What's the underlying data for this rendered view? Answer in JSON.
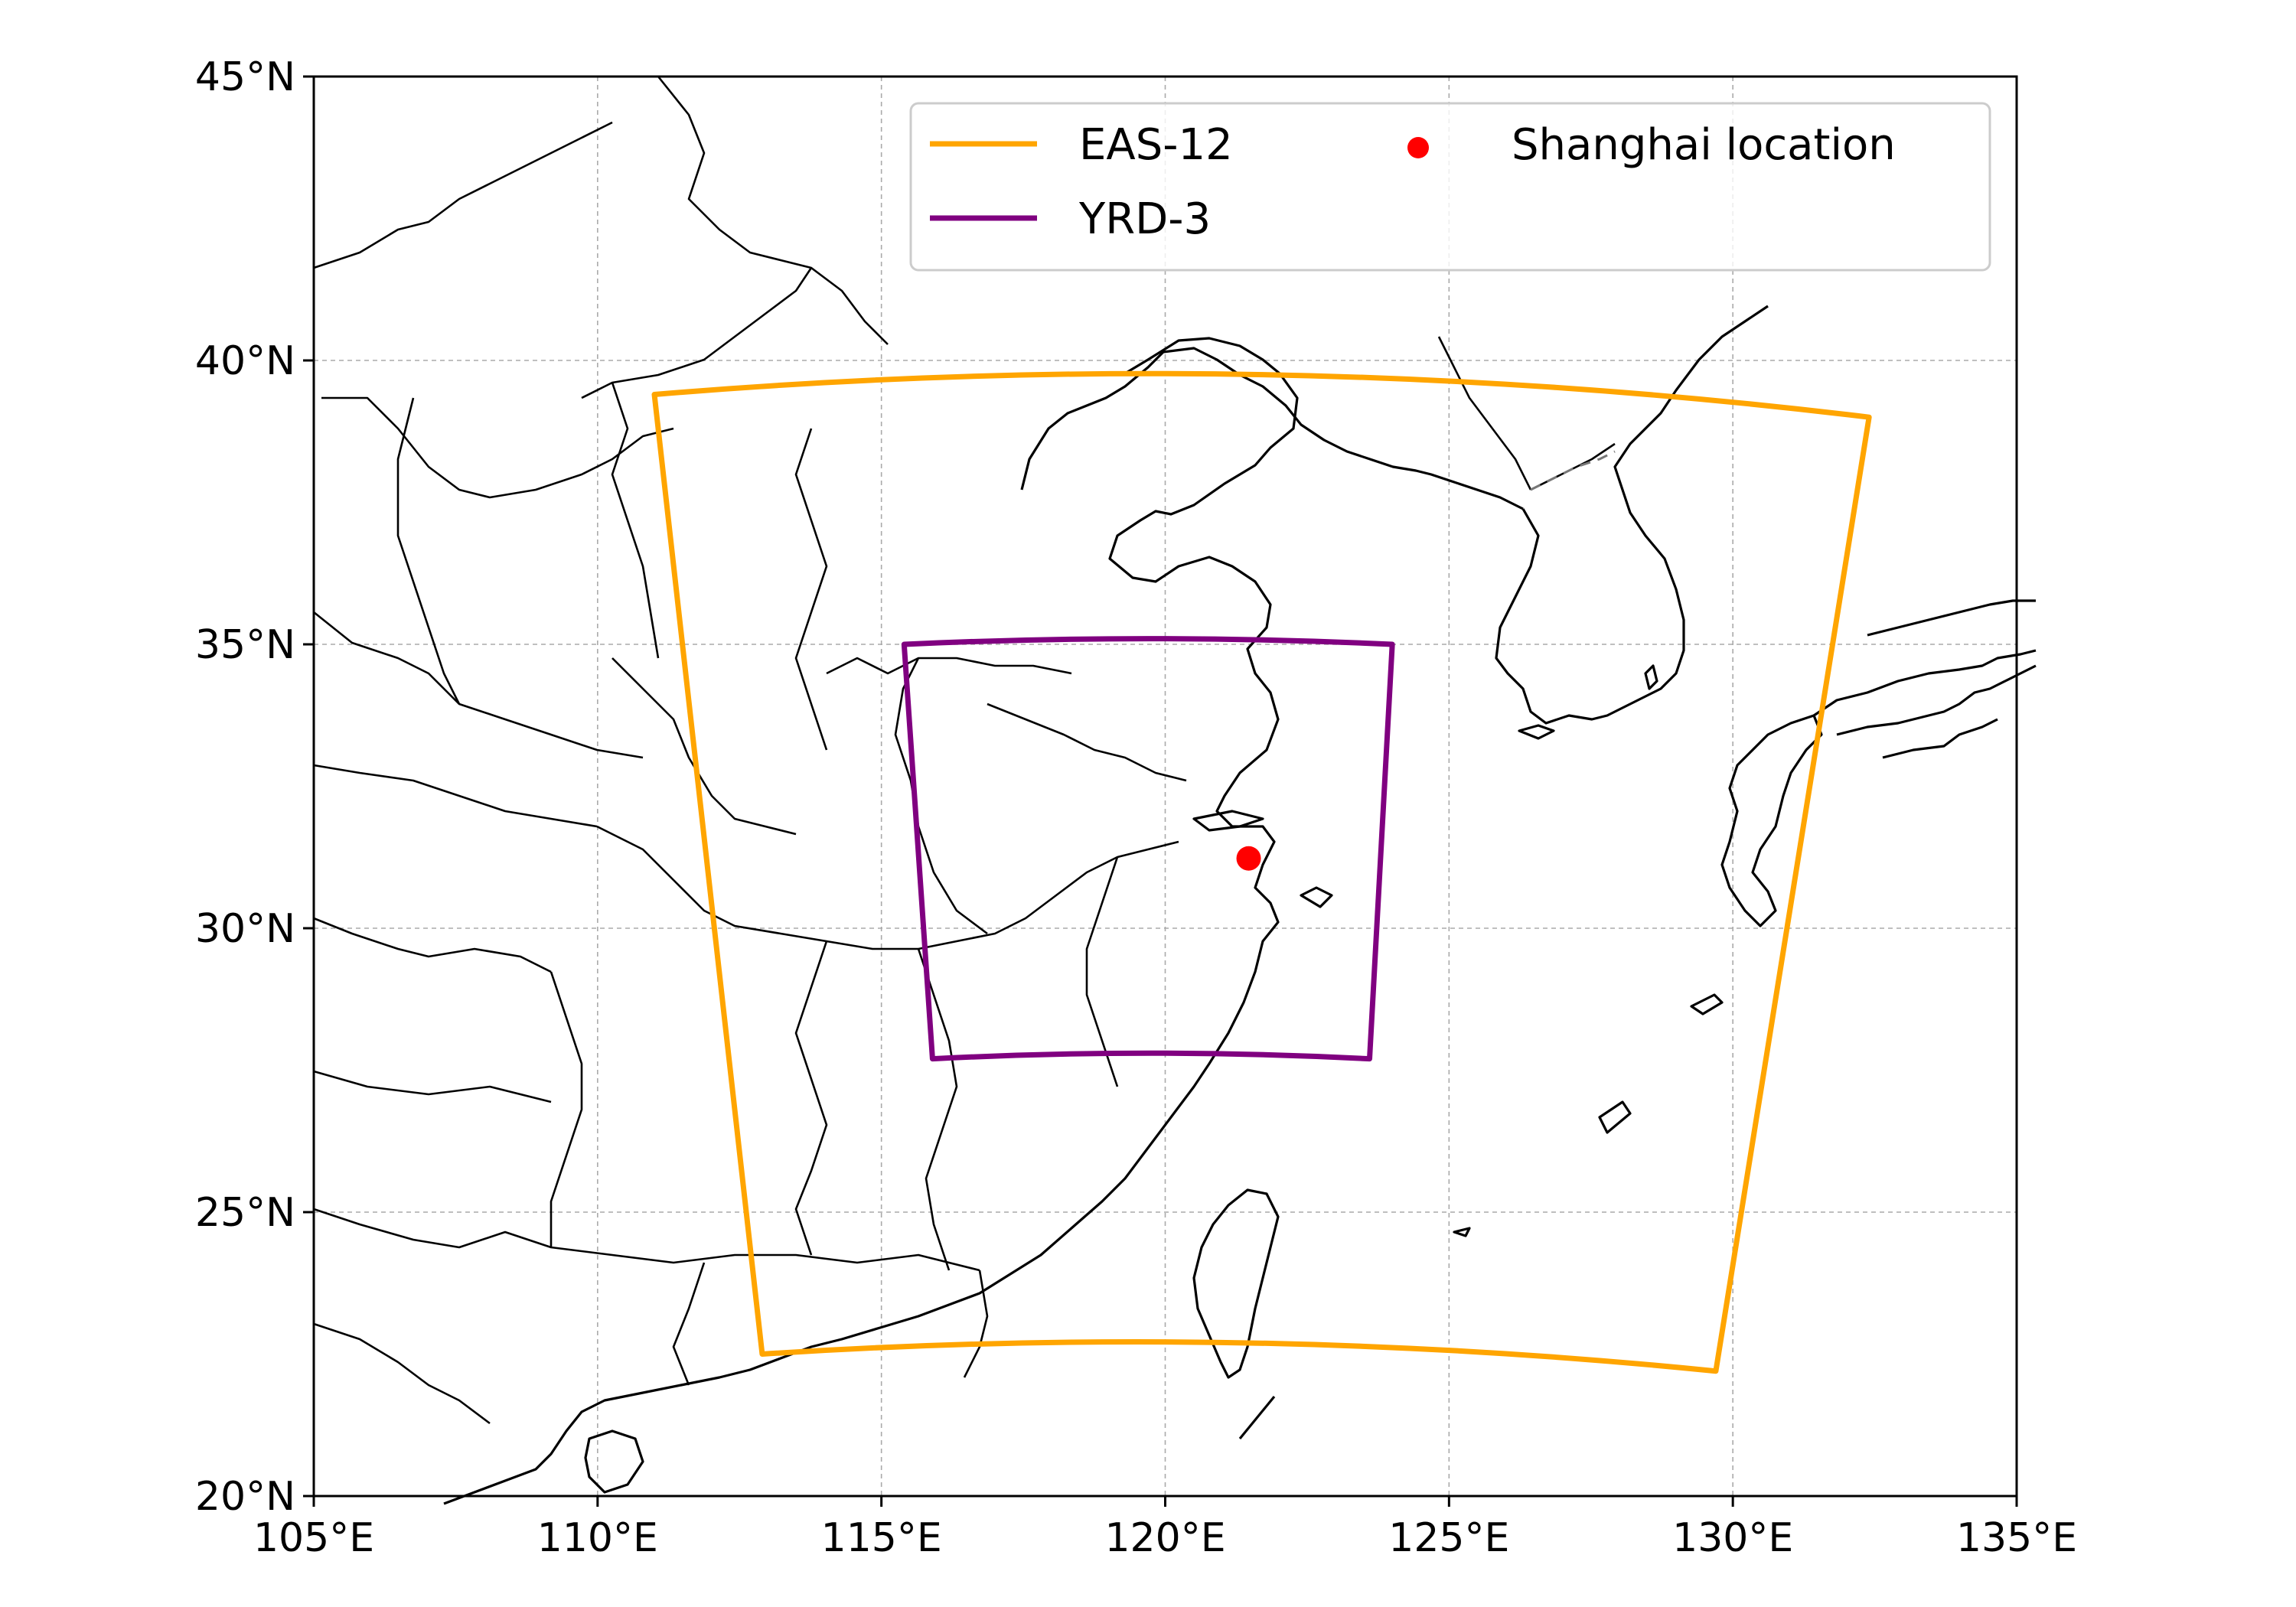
{
  "map": {
    "lon_range": [
      105,
      135
    ],
    "lat_range": [
      20,
      45
    ],
    "x_tick_labels": [
      "105°E",
      "110°E",
      "115°E",
      "120°E",
      "125°E",
      "130°E",
      "135°E"
    ],
    "y_tick_labels": [
      "20°N",
      "25°N",
      "30°N",
      "35°N",
      "40°N",
      "45°N"
    ],
    "gridlines": true,
    "gridline_style": "dashed",
    "coastline_color": "#000000",
    "border_color": "#000000"
  },
  "legend": {
    "placement": "top-right",
    "items": [
      {
        "label": "EAS-12",
        "symbol": "line",
        "color": "#FFA500"
      },
      {
        "label": "YRD-3",
        "symbol": "line",
        "color": "#800080"
      },
      {
        "label": "Shanghai location",
        "symbol": "dot",
        "color": "#FF0000"
      }
    ]
  },
  "domains": [
    {
      "name": "EAS-12",
      "color": "#FFA500",
      "corners": [
        [
          111.0,
          39.4
        ],
        [
          132.4,
          39.0
        ],
        [
          129.7,
          22.2
        ],
        [
          112.9,
          22.5
        ]
      ],
      "top_mid_lat": 39.75,
      "bottom_mid_lat": 22.7
    },
    {
      "name": "YRD-3",
      "color": "#800080",
      "corners": [
        [
          115.4,
          35.0
        ],
        [
          124.0,
          35.0
        ],
        [
          123.6,
          27.7
        ],
        [
          115.9,
          27.7
        ]
      ],
      "top_mid_lat": 35.1,
      "bottom_mid_lat": 27.8
    }
  ],
  "points": [
    {
      "name": "Shanghai",
      "lon": 121.47,
      "lat": 31.23,
      "color": "#FF0000"
    }
  ]
}
